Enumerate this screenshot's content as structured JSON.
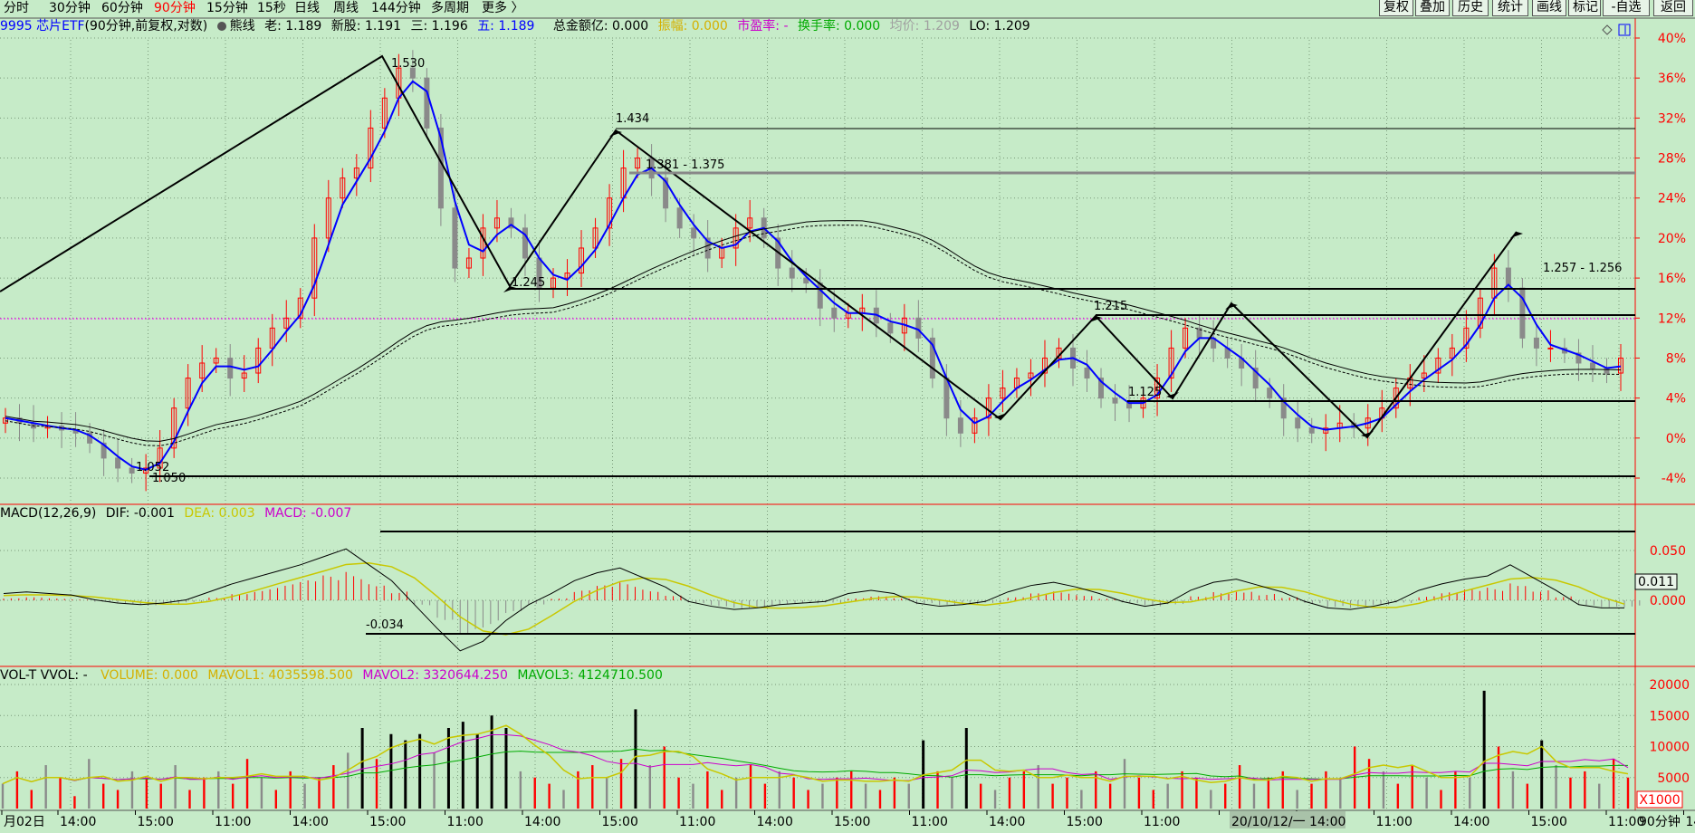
{
  "toolbar": {
    "periods": [
      {
        "label": "分时",
        "active": false
      },
      {
        "label": "30分钟",
        "active": false
      },
      {
        "label": "60分钟",
        "active": false
      },
      {
        "label": "90分钟",
        "active": true
      },
      {
        "label": "15分钟",
        "active": false
      },
      {
        "label": "15秒",
        "active": false
      },
      {
        "label": "日线",
        "active": false
      },
      {
        "label": "周线",
        "active": false
      },
      {
        "label": "144分钟",
        "active": false
      },
      {
        "label": "多周期",
        "active": false
      },
      {
        "label": "更多 〉",
        "active": false
      }
    ],
    "right_buttons": [
      "复权",
      "叠加",
      "历史",
      "统计",
      "画线",
      "标记",
      "-自选",
      "返回"
    ]
  },
  "main_info": {
    "code_name": "9995 芯片ETF",
    "mode": "(90分钟,前复权,对数)",
    "bear_line": "熊线",
    "old": "老: 1.189",
    "new_share": "新股: 1.191",
    "three": "三: 1.196",
    "five": "五: 1.189",
    "amount": "总金额亿: 0.000",
    "amplitude": "振幅: 0.000",
    "pe": "市盈率: -",
    "turnover": "换手率: 0.000",
    "avg": "均价: 1.209",
    "lo": "LO: 1.209"
  },
  "macd_info": {
    "name": "MACD(12,26,9)",
    "dif": "DIF: -0.001",
    "dea": "DEA: 0.003",
    "macd": "MACD: -0.007"
  },
  "vol_info": {
    "name": "VOL-T VVOL: -",
    "volume": "VOLUME: 0.000",
    "mavol1": "MAVOL1: 4035598.500",
    "mavol2": "MAVOL2: 3320644.250",
    "mavol3": "MAVOL3: 4124710.500"
  },
  "colors": {
    "bg": "#c6ebc8",
    "up": "#ff0000",
    "down": "#8a8a8a",
    "ma": "#0000ff",
    "axis": "#ff0000",
    "dea": "#c8c800",
    "mavol2": "#cc00cc",
    "mavol3": "#00aa00"
  },
  "chart_data": [
    {
      "type": "candlestick",
      "title": "",
      "y_axis_labels": [
        "40%",
        "36%",
        "32%",
        "28%",
        "24%",
        "20%",
        "16%",
        "12%",
        "8%",
        "4%",
        "0%",
        "-4%"
      ],
      "y_axis_values": [
        40,
        36,
        32,
        28,
        24,
        20,
        16,
        12,
        8,
        4,
        0,
        -4
      ],
      "x_labels": [
        "月02日",
        "14:00",
        "15:00",
        "11:00",
        "14:00",
        "15:00",
        "11:00",
        "14:00",
        "15:00",
        "11:00",
        "14:00",
        "15:00",
        "11:00",
        "14:00",
        "15:00",
        "11:00",
        "14:00",
        "15:00",
        "11:00",
        "14:00",
        "15:00",
        "11:00",
        "14:00",
        "15:00",
        "11:00"
      ],
      "x_cursor_label": "20/10/12/一 14:00",
      "period_label": "90分钟",
      "close_percent": [
        2,
        1.5,
        1,
        1.2,
        0.8,
        0.5,
        -0.5,
        -2,
        -3,
        -3.5,
        -3,
        -1,
        3,
        6,
        7.5,
        8,
        6,
        6.5,
        9,
        11,
        12,
        14,
        20,
        24,
        26,
        27,
        31,
        34,
        37,
        36,
        31,
        23,
        17,
        18,
        21,
        22,
        21,
        18,
        15,
        16,
        16.5,
        19,
        21,
        24,
        27,
        28,
        26,
        23,
        21,
        20,
        18,
        19,
        21,
        22,
        20,
        17,
        16,
        15.5,
        13,
        12,
        12.5,
        13,
        11.5,
        10.5,
        12,
        10,
        6,
        2,
        0.5,
        2,
        4,
        5,
        6,
        6.5,
        8,
        9,
        7,
        6,
        4,
        3.5,
        3,
        4,
        6,
        9,
        11,
        10,
        9,
        8,
        7,
        5,
        4,
        2,
        1,
        0.5,
        1,
        1.5,
        1,
        2,
        3,
        5,
        6,
        6.5,
        8,
        9,
        11,
        14,
        17,
        15,
        10,
        9,
        9,
        8.5,
        7.5,
        7,
        6.5,
        8
      ],
      "ma_line": "blue",
      "swing_points": [
        {
          "label": "1.530"
        },
        {
          "label": "1.434"
        },
        {
          "label": "1.381 - 1.375"
        },
        {
          "label": "1.245"
        },
        {
          "label": "1.215"
        },
        {
          "label": "1.125"
        },
        {
          "label": "1.052"
        },
        {
          "label": "1.050"
        },
        {
          "label": "1.257 - 1.256"
        }
      ]
    },
    {
      "type": "histogram",
      "title": "MACD(12,26,9)",
      "y_axis_labels": [
        "0.050",
        "0.000"
      ],
      "y_axis_values": [
        0.05,
        0
      ],
      "current_value": "0.011",
      "annotation": "-0.034",
      "macd_bars": [
        0.002,
        0.003,
        0.002,
        0.001,
        -0.002,
        -0.004,
        -0.005,
        -0.004,
        -0.002,
        0.003,
        0.008,
        0.012,
        0.016,
        0.02,
        0.025,
        0.03,
        0.02,
        0.01,
        -0.005,
        -0.02,
        -0.034,
        -0.028,
        -0.015,
        -0.005,
        0.002,
        0.01,
        0.015,
        0.018,
        0.012,
        0.006,
        -0.003,
        -0.006,
        -0.008,
        -0.007,
        -0.005,
        -0.004,
        -0.003,
        0.002,
        0.004,
        0.002,
        -0.004,
        -0.006,
        -0.005,
        -0.003,
        0.003,
        0.007,
        0.009,
        0.006,
        0.002,
        -0.003,
        -0.006,
        -0.004,
        0.004,
        0.009,
        0.011,
        0.007,
        0.003,
        -0.003,
        -0.007,
        -0.008,
        -0.006,
        -0.003,
        0.004,
        0.008,
        0.011,
        0.013,
        0.02,
        0.012,
        0.004,
        -0.005,
        -0.007,
        -0.007
      ]
    },
    {
      "type": "bar",
      "title": "VOL-T",
      "y_axis_labels": [
        "20000",
        "15000",
        "10000",
        "5000"
      ],
      "y_axis_values": [
        20000,
        15000,
        10000,
        5000
      ],
      "unit_label": "X1000",
      "volumes": [
        4,
        6,
        3,
        7,
        5,
        2,
        8,
        4,
        3,
        6,
        5,
        4,
        7,
        3,
        5,
        6,
        4,
        8,
        5,
        3,
        6,
        4,
        5,
        7,
        9,
        13,
        8,
        12,
        11,
        12,
        9,
        13,
        14,
        12,
        15,
        13,
        6,
        5,
        4,
        3,
        6,
        7,
        5,
        8,
        16,
        7,
        10,
        5,
        4,
        6,
        3,
        5,
        7,
        4,
        6,
        5,
        3,
        4,
        5,
        6,
        4,
        3,
        5,
        4,
        11,
        6,
        5,
        13,
        4,
        3,
        5,
        6,
        7,
        4,
        5,
        3,
        6,
        4,
        8,
        5,
        3,
        4,
        6,
        5,
        3,
        4,
        7,
        4,
        5,
        6,
        3,
        4,
        6,
        5,
        10,
        8,
        6,
        4,
        7,
        5,
        3,
        6,
        5,
        19,
        10,
        6,
        4,
        11,
        7,
        5,
        6,
        4,
        8,
        5
      ]
    }
  ]
}
